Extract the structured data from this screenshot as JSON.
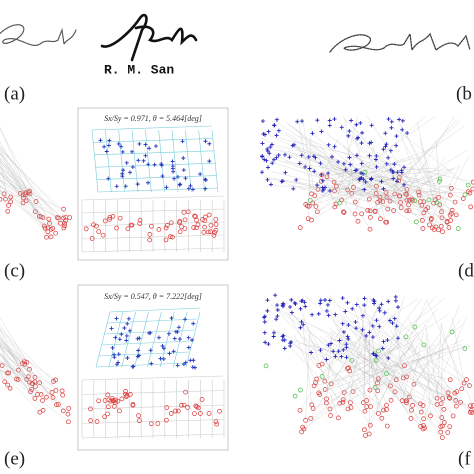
{
  "signature_caption": "R. M. San",
  "panels": [
    "(a)",
    "(b",
    "(c)",
    "(d",
    "(e)",
    "(f"
  ],
  "insets": [
    {
      "text": "Sx/Sy = 0.971, θ = 5.464[deg]"
    },
    {
      "text": "Sx/Sy = 0.547, θ = 7.222[deg]"
    }
  ]
}
